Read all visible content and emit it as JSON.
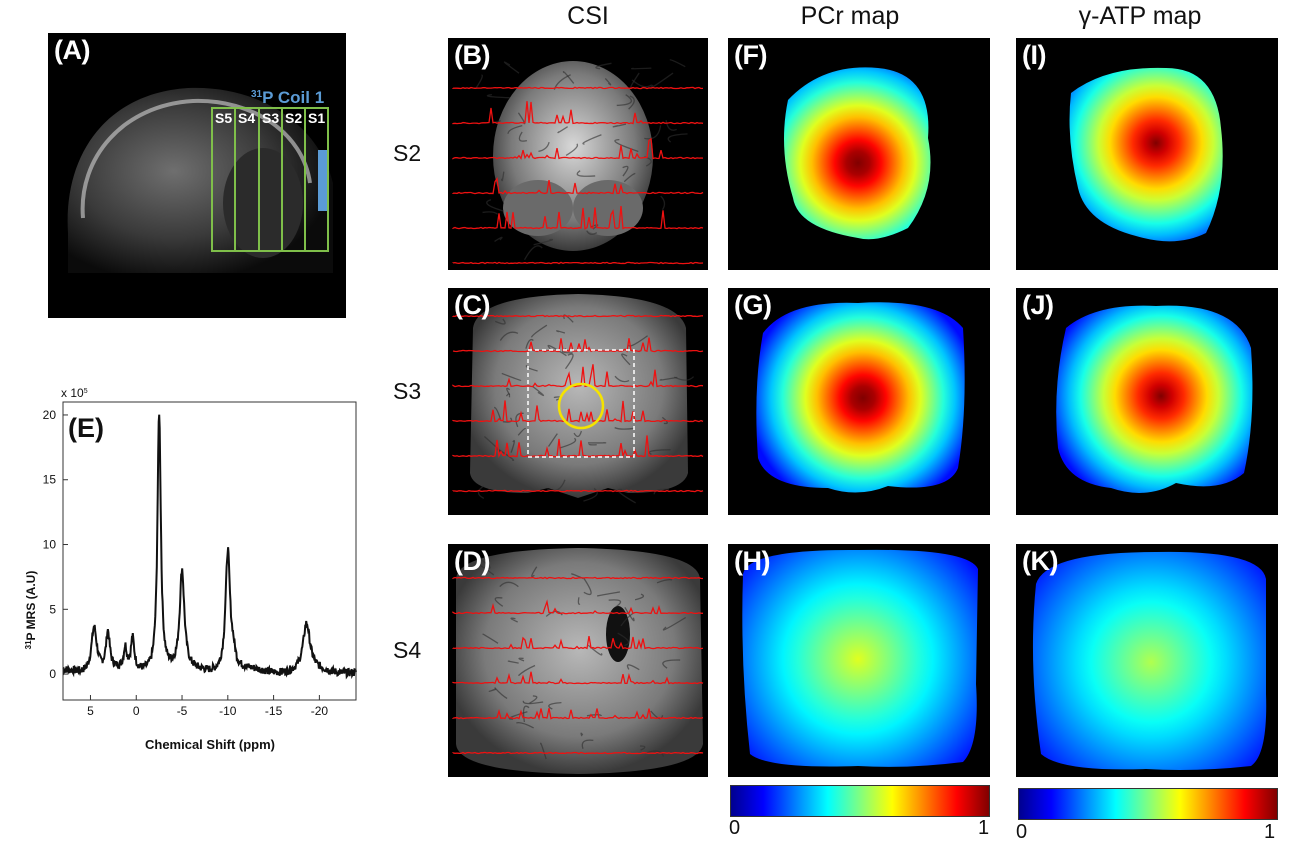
{
  "column_headers": {
    "csi": "CSI",
    "pcr": "PCr map",
    "atp": "γ-ATP map"
  },
  "row_labels": {
    "s2": "S2",
    "s3": "S3",
    "s4": "S4"
  },
  "panel_labels": {
    "A": "(A)",
    "B": "(B)",
    "C": "(C)",
    "D": "(D)",
    "E": "(E)",
    "F": "(F)",
    "G": "(G)",
    "H": "(H)",
    "I": "(I)",
    "J": "(J)",
    "K": "(K)"
  },
  "sagittal": {
    "coil_label_sup": "31",
    "coil_label": "P Coil 1",
    "slices": [
      "S5",
      "S4",
      "S3",
      "S2",
      "S1"
    ],
    "coil_color": "#5b9bd5",
    "slice_color": "#7fbf4a"
  },
  "colorbars": {
    "pcr": {
      "min": "0",
      "max": "1"
    },
    "atp": {
      "min": "0",
      "max": "1"
    }
  },
  "maps": {
    "F": {
      "peak": 1.0
    },
    "G": {
      "peak": 1.0
    },
    "H": {
      "peak": 0.5
    },
    "I": {
      "peak": 0.95
    },
    "J": {
      "peak": 0.95
    },
    "K": {
      "peak": 0.45
    }
  },
  "chart_data": {
    "type": "line",
    "xlabel": "Chemical Shift (ppm)",
    "ylabel_sup": "31",
    "ylabel": "P MRS (A.U)",
    "y_multiplier": "x 10",
    "y_multiplier_exp": "5",
    "xlim": [
      8,
      -24
    ],
    "ylim": [
      -2,
      21
    ],
    "x_ticks": [
      "5",
      "0",
      "-5",
      "-10",
      "-15",
      "-20"
    ],
    "x_tick_values": [
      5,
      0,
      -5,
      -10,
      -15,
      -20
    ],
    "y_ticks": [
      "0",
      "5",
      "10",
      "15",
      "20"
    ],
    "y_tick_values": [
      0,
      5,
      10,
      15,
      20
    ],
    "peaks": [
      {
        "ppm": 4.6,
        "amp": 3.5,
        "width": 0.35
      },
      {
        "ppm": 3.1,
        "amp": 2.9,
        "width": 0.25
      },
      {
        "ppm": 1.2,
        "amp": 1.6,
        "width": 0.2
      },
      {
        "ppm": 0.4,
        "amp": 2.4,
        "width": 0.22
      },
      {
        "ppm": -2.5,
        "amp": 20.0,
        "width": 0.22
      },
      {
        "ppm": -5.0,
        "amp": 7.6,
        "width": 0.3
      },
      {
        "ppm": -10.0,
        "amp": 9.3,
        "width": 0.3
      },
      {
        "ppm": -10.6,
        "amp": 1.0,
        "width": 0.25
      },
      {
        "ppm": -18.6,
        "amp": 3.6,
        "width": 0.45
      }
    ]
  }
}
